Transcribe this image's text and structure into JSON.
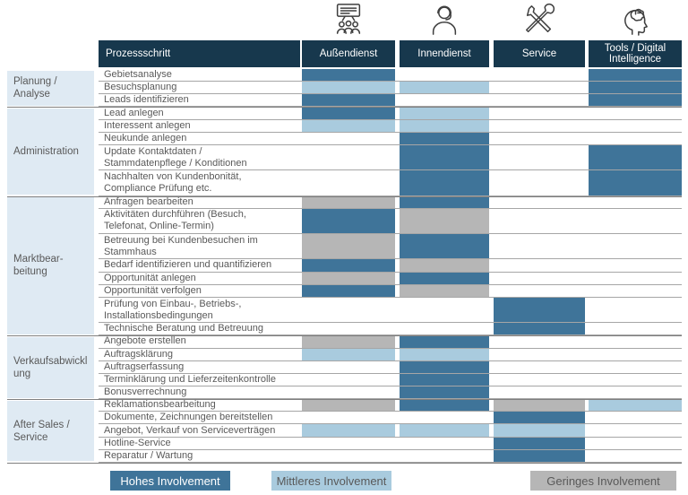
{
  "colors": {
    "high": "#3f7499",
    "mid": "#a9cbde",
    "low": "#b6b6b6",
    "header_bg": "#17384d",
    "category_bg": "#dfeaf3",
    "text": "#595959"
  },
  "table": {
    "process_header": "Prozessschritt",
    "columns": [
      {
        "label": "Außendienst",
        "icon": "presentation-audience-icon"
      },
      {
        "label": "Innendienst",
        "icon": "headset-person-icon"
      },
      {
        "label": "Service",
        "icon": "crossed-tools-icon"
      },
      {
        "label": "Tools / Digital\nIntelligence",
        "icon": "brain-head-icon"
      }
    ],
    "categories": [
      {
        "label": "Planung /\nAnalyse",
        "rows": [
          {
            "label": "Gebietsanalyse",
            "lines": 1,
            "levels": [
              "high",
              null,
              null,
              "high"
            ]
          },
          {
            "label": "Besuchsplanung",
            "lines": 1,
            "levels": [
              "mid",
              "mid",
              null,
              "high"
            ]
          },
          {
            "label": "Leads identifizieren",
            "lines": 1,
            "levels": [
              "high",
              null,
              null,
              "high"
            ]
          }
        ]
      },
      {
        "label": "Administration",
        "rows": [
          {
            "label": "Lead anlegen",
            "lines": 1,
            "levels": [
              "high",
              "mid",
              null,
              null
            ]
          },
          {
            "label": "Interessent anlegen",
            "lines": 1,
            "levels": [
              "mid",
              "mid",
              null,
              null
            ]
          },
          {
            "label": "Neukunde anlegen",
            "lines": 1,
            "levels": [
              null,
              "high",
              null,
              null
            ]
          },
          {
            "label": "Update Kontaktdaten /\nStammdatenpflege / Konditionen",
            "lines": 2,
            "levels": [
              null,
              "high",
              null,
              "high"
            ]
          },
          {
            "label": "Nachhalten von Kundenbonität,\nCompliance Prüfung etc.",
            "lines": 2,
            "levels": [
              null,
              "high",
              null,
              "high"
            ]
          }
        ]
      },
      {
        "label": "Marktbear-\nbeitung",
        "rows": [
          {
            "label": "Anfragen bearbeiten",
            "lines": 1,
            "levels": [
              "low",
              "high",
              null,
              null
            ]
          },
          {
            "label": "Aktivitäten durchführen (Besuch,\nTelefonat, Online-Termin)",
            "lines": 2,
            "levels": [
              "high",
              "low",
              null,
              null
            ]
          },
          {
            "label": "Betreuung bei Kundenbesuchen im\nStammhaus",
            "lines": 2,
            "levels": [
              "low",
              "high",
              null,
              null
            ]
          },
          {
            "label": "Bedarf identifizieren und quantifizieren",
            "lines": 1,
            "levels": [
              "high",
              "low",
              null,
              null
            ]
          },
          {
            "label": "Opportunität anlegen",
            "lines": 1,
            "levels": [
              "low",
              "high",
              null,
              null
            ]
          },
          {
            "label": "Opportunität verfolgen",
            "lines": 1,
            "levels": [
              "high",
              "low",
              null,
              null
            ]
          },
          {
            "label": "Prüfung von Einbau-, Betriebs-,\nInstallationsbedingungen",
            "lines": 2,
            "levels": [
              null,
              null,
              "high",
              null
            ]
          },
          {
            "label": "Technische Beratung und Betreuung",
            "lines": 1,
            "levels": [
              null,
              null,
              "high",
              null
            ]
          }
        ]
      },
      {
        "label": "Verkaufsabwickl\nung",
        "rows": [
          {
            "label": "Angebote erstellen",
            "lines": 1,
            "levels": [
              "low",
              "high",
              null,
              null
            ]
          },
          {
            "label": "Auftragsklärung",
            "lines": 1,
            "levels": [
              "mid",
              "mid",
              null,
              null
            ]
          },
          {
            "label": "Auftragserfassung",
            "lines": 1,
            "levels": [
              null,
              "high",
              null,
              null
            ]
          },
          {
            "label": "Terminklärung und Lieferzeitenkontrolle",
            "lines": 1,
            "levels": [
              null,
              "high",
              null,
              null
            ]
          },
          {
            "label": "Bonusverrechnung",
            "lines": 1,
            "levels": [
              null,
              "high",
              null,
              null
            ]
          }
        ]
      },
      {
        "label": "After Sales /\nService",
        "rows": [
          {
            "label": "Reklamationsbearbeitung",
            "lines": 1,
            "levels": [
              "low",
              "high",
              "low",
              "mid"
            ]
          },
          {
            "label": "Dokumente, Zeichnungen bereitstellen",
            "lines": 1,
            "levels": [
              null,
              null,
              "high",
              null
            ]
          },
          {
            "label": "Angebot, Verkauf von Serviceverträgen",
            "lines": 1,
            "levels": [
              "mid",
              "mid",
              "mid",
              null
            ]
          },
          {
            "label": "Hotline-Service",
            "lines": 1,
            "levels": [
              null,
              null,
              "high",
              null
            ]
          },
          {
            "label": "Reparatur / Wartung",
            "lines": 1,
            "levels": [
              null,
              null,
              "high",
              null
            ]
          }
        ]
      }
    ]
  },
  "legend": {
    "items": [
      {
        "label": "Hohes Involvement",
        "level": "high"
      },
      {
        "label": "Mittleres Involvement",
        "level": "mid"
      },
      {
        "label": "Geringes Involvement",
        "level": "low"
      }
    ]
  }
}
